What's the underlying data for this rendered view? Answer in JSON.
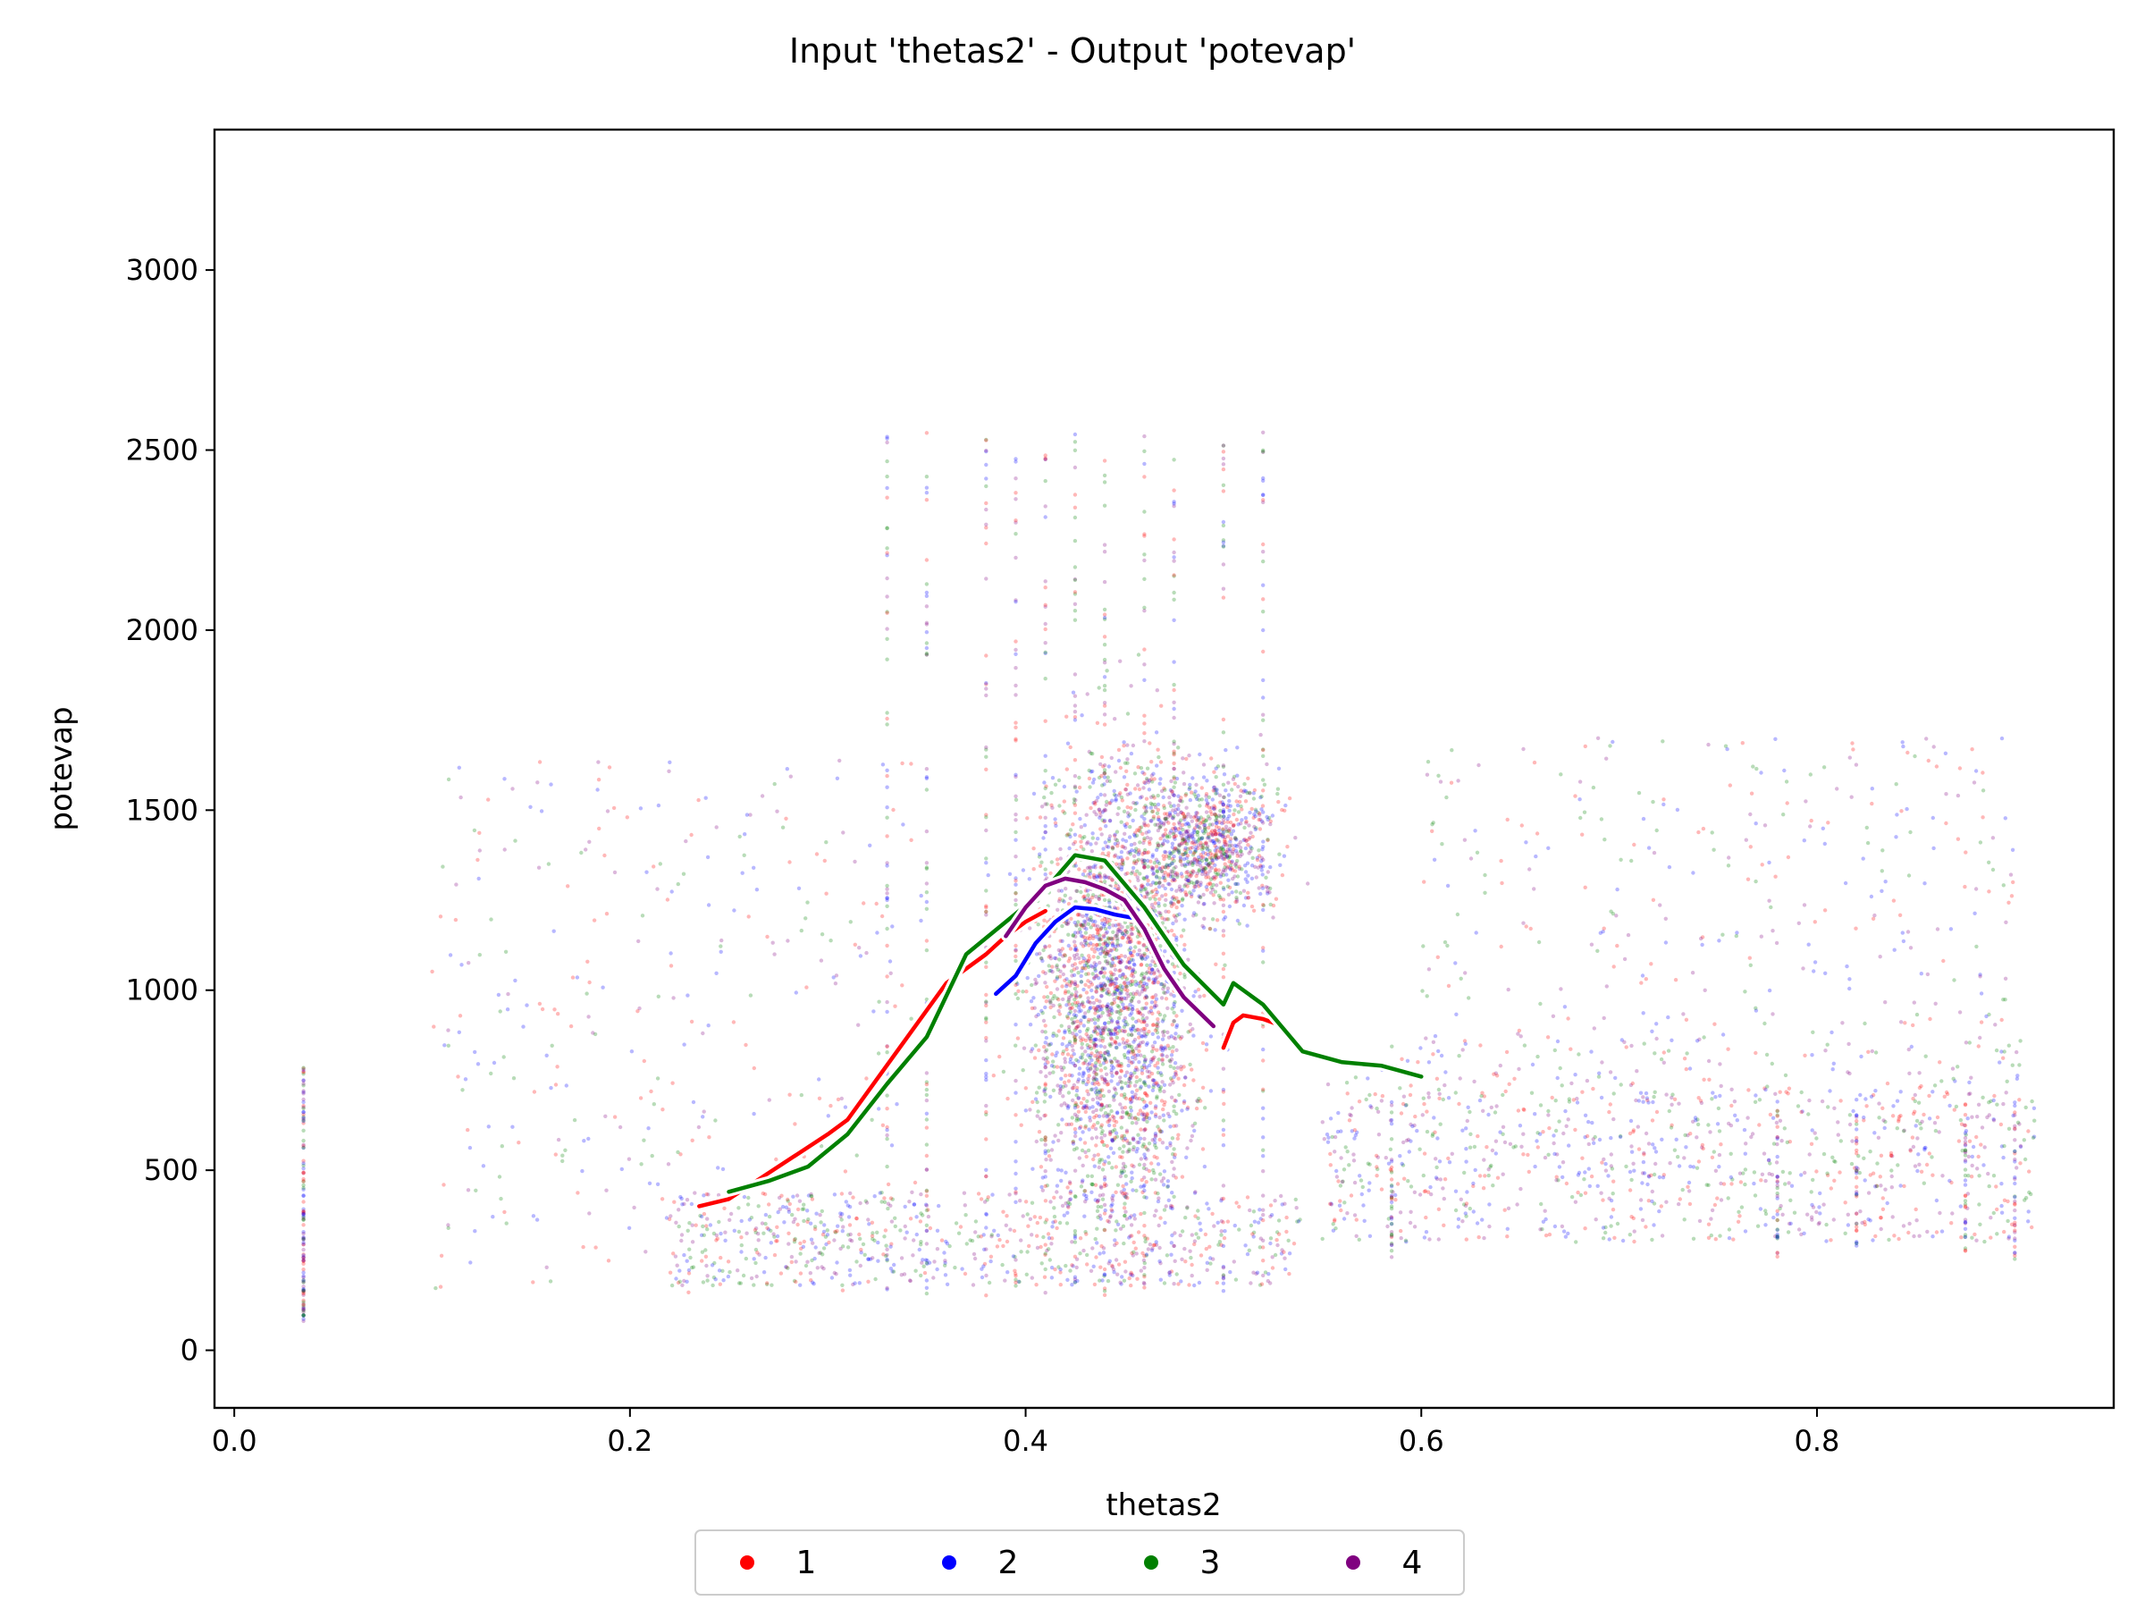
{
  "chart_data": {
    "type": "scatter",
    "title": "Input 'thetas2' - Output 'potevap'",
    "xlabel": "thetas2",
    "ylabel": "potevap",
    "xlim": [
      -0.01,
      0.95
    ],
    "ylim": [
      -160,
      3390
    ],
    "x_ticks": [
      0.0,
      0.2,
      0.4,
      0.6,
      0.8
    ],
    "x_tick_labels": [
      "0.0",
      "0.2",
      "0.4",
      "0.6",
      "0.8"
    ],
    "y_ticks": [
      0,
      500,
      1000,
      1500,
      2000,
      2500,
      3000
    ],
    "y_tick_labels": [
      "0",
      "500",
      "1000",
      "1500",
      "2000",
      "2500",
      "3000"
    ],
    "grid": false,
    "legend_position": "bottom-center-outside",
    "legend": [
      {
        "label": "1",
        "color": "#ff0000"
      },
      {
        "label": "2",
        "color": "#0000ff"
      },
      {
        "label": "3",
        "color": "#008000"
      },
      {
        "label": "4",
        "color": "#800080"
      }
    ],
    "scatter_regions": [
      {
        "note_x": [
          0.035,
          0.035
        ],
        "y": [
          80,
          790
        ]
      },
      {
        "x": [
          0.22,
          0.54
        ],
        "y": [
          150,
          400
        ]
      },
      {
        "x": [
          0.36,
          0.54
        ],
        "y": [
          300,
          2600
        ]
      },
      {
        "x": [
          0.55,
          0.9
        ],
        "y": [
          250,
          700
        ]
      },
      {
        "x": [
          0.1,
          0.3
        ],
        "y": [
          100,
          1700
        ]
      },
      {
        "x": [
          0.6,
          0.9
        ],
        "y": [
          700,
          1700
        ]
      }
    ],
    "series": [
      {
        "name": "1",
        "color": "#ff0000",
        "x": [
          0.235,
          0.25,
          0.3,
          0.31,
          0.36,
          0.38,
          0.39,
          0.4,
          0.41
        ],
        "y": [
          400,
          420,
          600,
          640,
          1020,
          1100,
          1150,
          1190,
          1220
        ]
      },
      {
        "name": "1",
        "color": "#ff0000",
        "x": [
          0.5,
          0.505,
          0.51,
          0.52,
          0.53
        ],
        "y": [
          840,
          910,
          930,
          920,
          900
        ]
      },
      {
        "name": "2",
        "color": "#0000ff",
        "x": [
          0.385,
          0.395,
          0.405,
          0.415,
          0.425,
          0.435,
          0.445,
          0.455
        ],
        "y": [
          990,
          1040,
          1130,
          1190,
          1230,
          1225,
          1210,
          1200
        ]
      },
      {
        "name": "3",
        "color": "#008000",
        "x": [
          0.25,
          0.27,
          0.29,
          0.31,
          0.33,
          0.35,
          0.37,
          0.39,
          0.41,
          0.425,
          0.44,
          0.46,
          0.48,
          0.5,
          0.505,
          0.52,
          0.54,
          0.56,
          0.58,
          0.6
        ],
        "y": [
          440,
          470,
          510,
          600,
          740,
          870,
          1100,
          1190,
          1280,
          1375,
          1360,
          1230,
          1070,
          960,
          1020,
          960,
          830,
          800,
          790,
          760
        ]
      },
      {
        "name": "4",
        "color": "#800080",
        "x": [
          0.39,
          0.4,
          0.41,
          0.42,
          0.43,
          0.44,
          0.45,
          0.46,
          0.47,
          0.48,
          0.495
        ],
        "y": [
          1150,
          1230,
          1290,
          1310,
          1300,
          1280,
          1250,
          1170,
          1060,
          980,
          900
        ]
      }
    ]
  }
}
